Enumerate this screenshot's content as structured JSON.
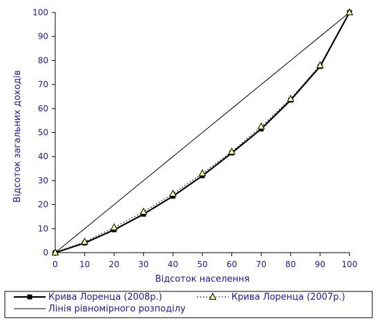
{
  "chart_data": {
    "type": "line",
    "title": "",
    "xlabel": "Відсоток населення",
    "ylabel": "Відсоток загальних доходів",
    "xlim": [
      0,
      100
    ],
    "ylim": [
      0,
      100
    ],
    "xticks": [
      0,
      10,
      20,
      30,
      40,
      50,
      60,
      70,
      80,
      90,
      100
    ],
    "yticks": [
      0,
      10,
      20,
      30,
      40,
      50,
      60,
      70,
      80,
      90,
      100
    ],
    "grid": false,
    "legend_position": "bottom",
    "x": [
      0,
      10,
      20,
      30,
      40,
      50,
      60,
      70,
      80,
      90,
      100
    ],
    "series": [
      {
        "name": "Крива Лоренца  (2008р.)",
        "style": "solid-thick",
        "marker": "square",
        "color": "#000000",
        "values": [
          0,
          4,
          9.5,
          16,
          23.5,
          32,
          41.5,
          51.5,
          63.5,
          77.5,
          100
        ]
      },
      {
        "name": "Крива Лоренца  (2007р.)",
        "style": "dotted",
        "marker": "triangle",
        "color": "#000000",
        "marker_fill": "#ffff99",
        "values": [
          0,
          4.5,
          10.5,
          17,
          24.5,
          33,
          42,
          52.5,
          64,
          78,
          100
        ]
      },
      {
        "name": "Лінія рівномірного розподілу",
        "style": "solid-thin",
        "marker": "none",
        "color": "#000000",
        "values": [
          0,
          10,
          20,
          30,
          40,
          50,
          60,
          70,
          80,
          90,
          100
        ]
      }
    ]
  }
}
